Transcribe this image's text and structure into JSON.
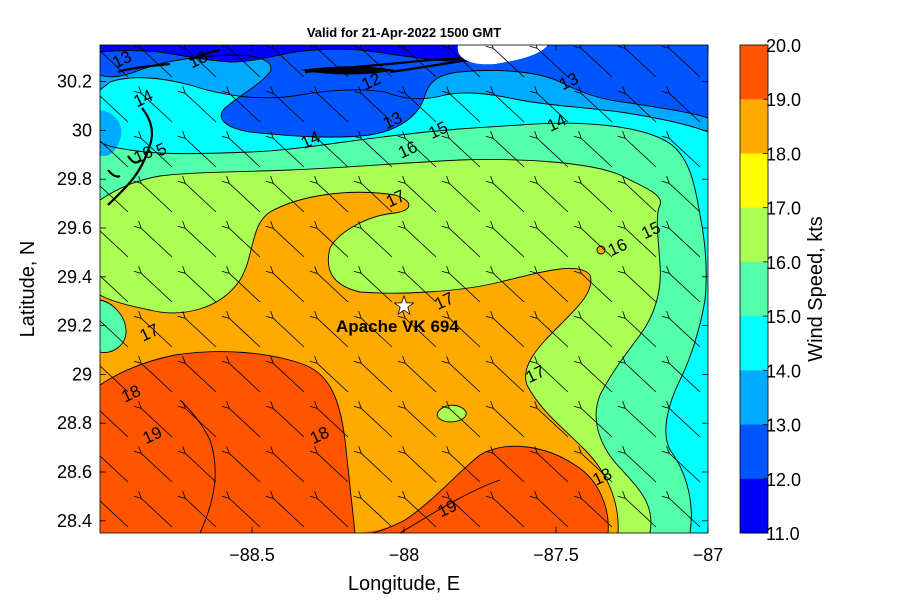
{
  "title": "Valid for 21-Apr-2022 1500 GMT",
  "xlabel": "Longitude, E",
  "ylabel": "Latitude, N",
  "colorbar_label": "Wind Speed, kts",
  "marker_label": "Apache VK 694",
  "marker_icon": "star-icon",
  "x_ticks": [
    {
      "value": -88.5,
      "label": "−88.5"
    },
    {
      "value": -88,
      "label": "−88"
    },
    {
      "value": -87.5,
      "label": "−87.5"
    },
    {
      "value": -87,
      "label": "−87"
    }
  ],
  "y_ticks": [
    {
      "value": 30.2,
      "label": "30.2"
    },
    {
      "value": 30,
      "label": "30"
    },
    {
      "value": 29.8,
      "label": "29.8"
    },
    {
      "value": 29.6,
      "label": "29.6"
    },
    {
      "value": 29.4,
      "label": "29.4"
    },
    {
      "value": 29.2,
      "label": "29.2"
    },
    {
      "value": 29,
      "label": "29"
    },
    {
      "value": 28.8,
      "label": "28.8"
    },
    {
      "value": 28.6,
      "label": "28.6"
    },
    {
      "value": 28.4,
      "label": "28.4"
    }
  ],
  "colorbar_ticks": [
    "20.0",
    "19.0",
    "18.0",
    "17.0",
    "16.0",
    "15.0",
    "14.0",
    "13.0",
    "12.0",
    "11.0"
  ],
  "colorbar_colors": [
    "#ff5500",
    "#ffaa00",
    "#ffff00",
    "#aaff55",
    "#55ffaa",
    "#00ffff",
    "#00aaff",
    "#0055ff",
    "#0000ff"
  ],
  "contour_labels": [
    {
      "text": "13",
      "lon": -88.92,
      "lat": 30.27
    },
    {
      "text": "16",
      "lon": -88.67,
      "lat": 30.27
    },
    {
      "text": "12",
      "lon": -88.1,
      "lat": 30.18
    },
    {
      "text": "13",
      "lon": -87.45,
      "lat": 30.18
    },
    {
      "text": "14",
      "lon": -88.85,
      "lat": 30.11
    },
    {
      "text": "13",
      "lon": -88.03,
      "lat": 30.02
    },
    {
      "text": "15",
      "lon": -87.88,
      "lat": 29.98
    },
    {
      "text": "14",
      "lon": -87.49,
      "lat": 30.01
    },
    {
      "text": "14",
      "lon": -88.3,
      "lat": 29.94
    },
    {
      "text": "16",
      "lon": -87.98,
      "lat": 29.9
    },
    {
      "text": "16",
      "lon": -88.85,
      "lat": 29.88
    },
    {
      "text": "5",
      "lon": -88.79,
      "lat": 29.9
    },
    {
      "text": "17",
      "lon": -88.02,
      "lat": 29.7
    },
    {
      "text": "15",
      "lon": -87.18,
      "lat": 29.57
    },
    {
      "text": "16",
      "lon": -87.29,
      "lat": 29.5
    },
    {
      "text": "17",
      "lon": -87.86,
      "lat": 29.28
    },
    {
      "text": "17",
      "lon": -88.83,
      "lat": 29.15
    },
    {
      "text": "17",
      "lon": -87.56,
      "lat": 28.98
    },
    {
      "text": "18",
      "lon": -88.89,
      "lat": 28.9
    },
    {
      "text": "19",
      "lon": -88.82,
      "lat": 28.73
    },
    {
      "text": "18",
      "lon": -88.27,
      "lat": 28.73
    },
    {
      "text": "18",
      "lon": -87.34,
      "lat": 28.56
    },
    {
      "text": "19",
      "lon": -87.85,
      "lat": 28.43
    }
  ],
  "marker": {
    "lon": -88.0,
    "lat": 29.28
  },
  "wind_direction": "northwest"
}
